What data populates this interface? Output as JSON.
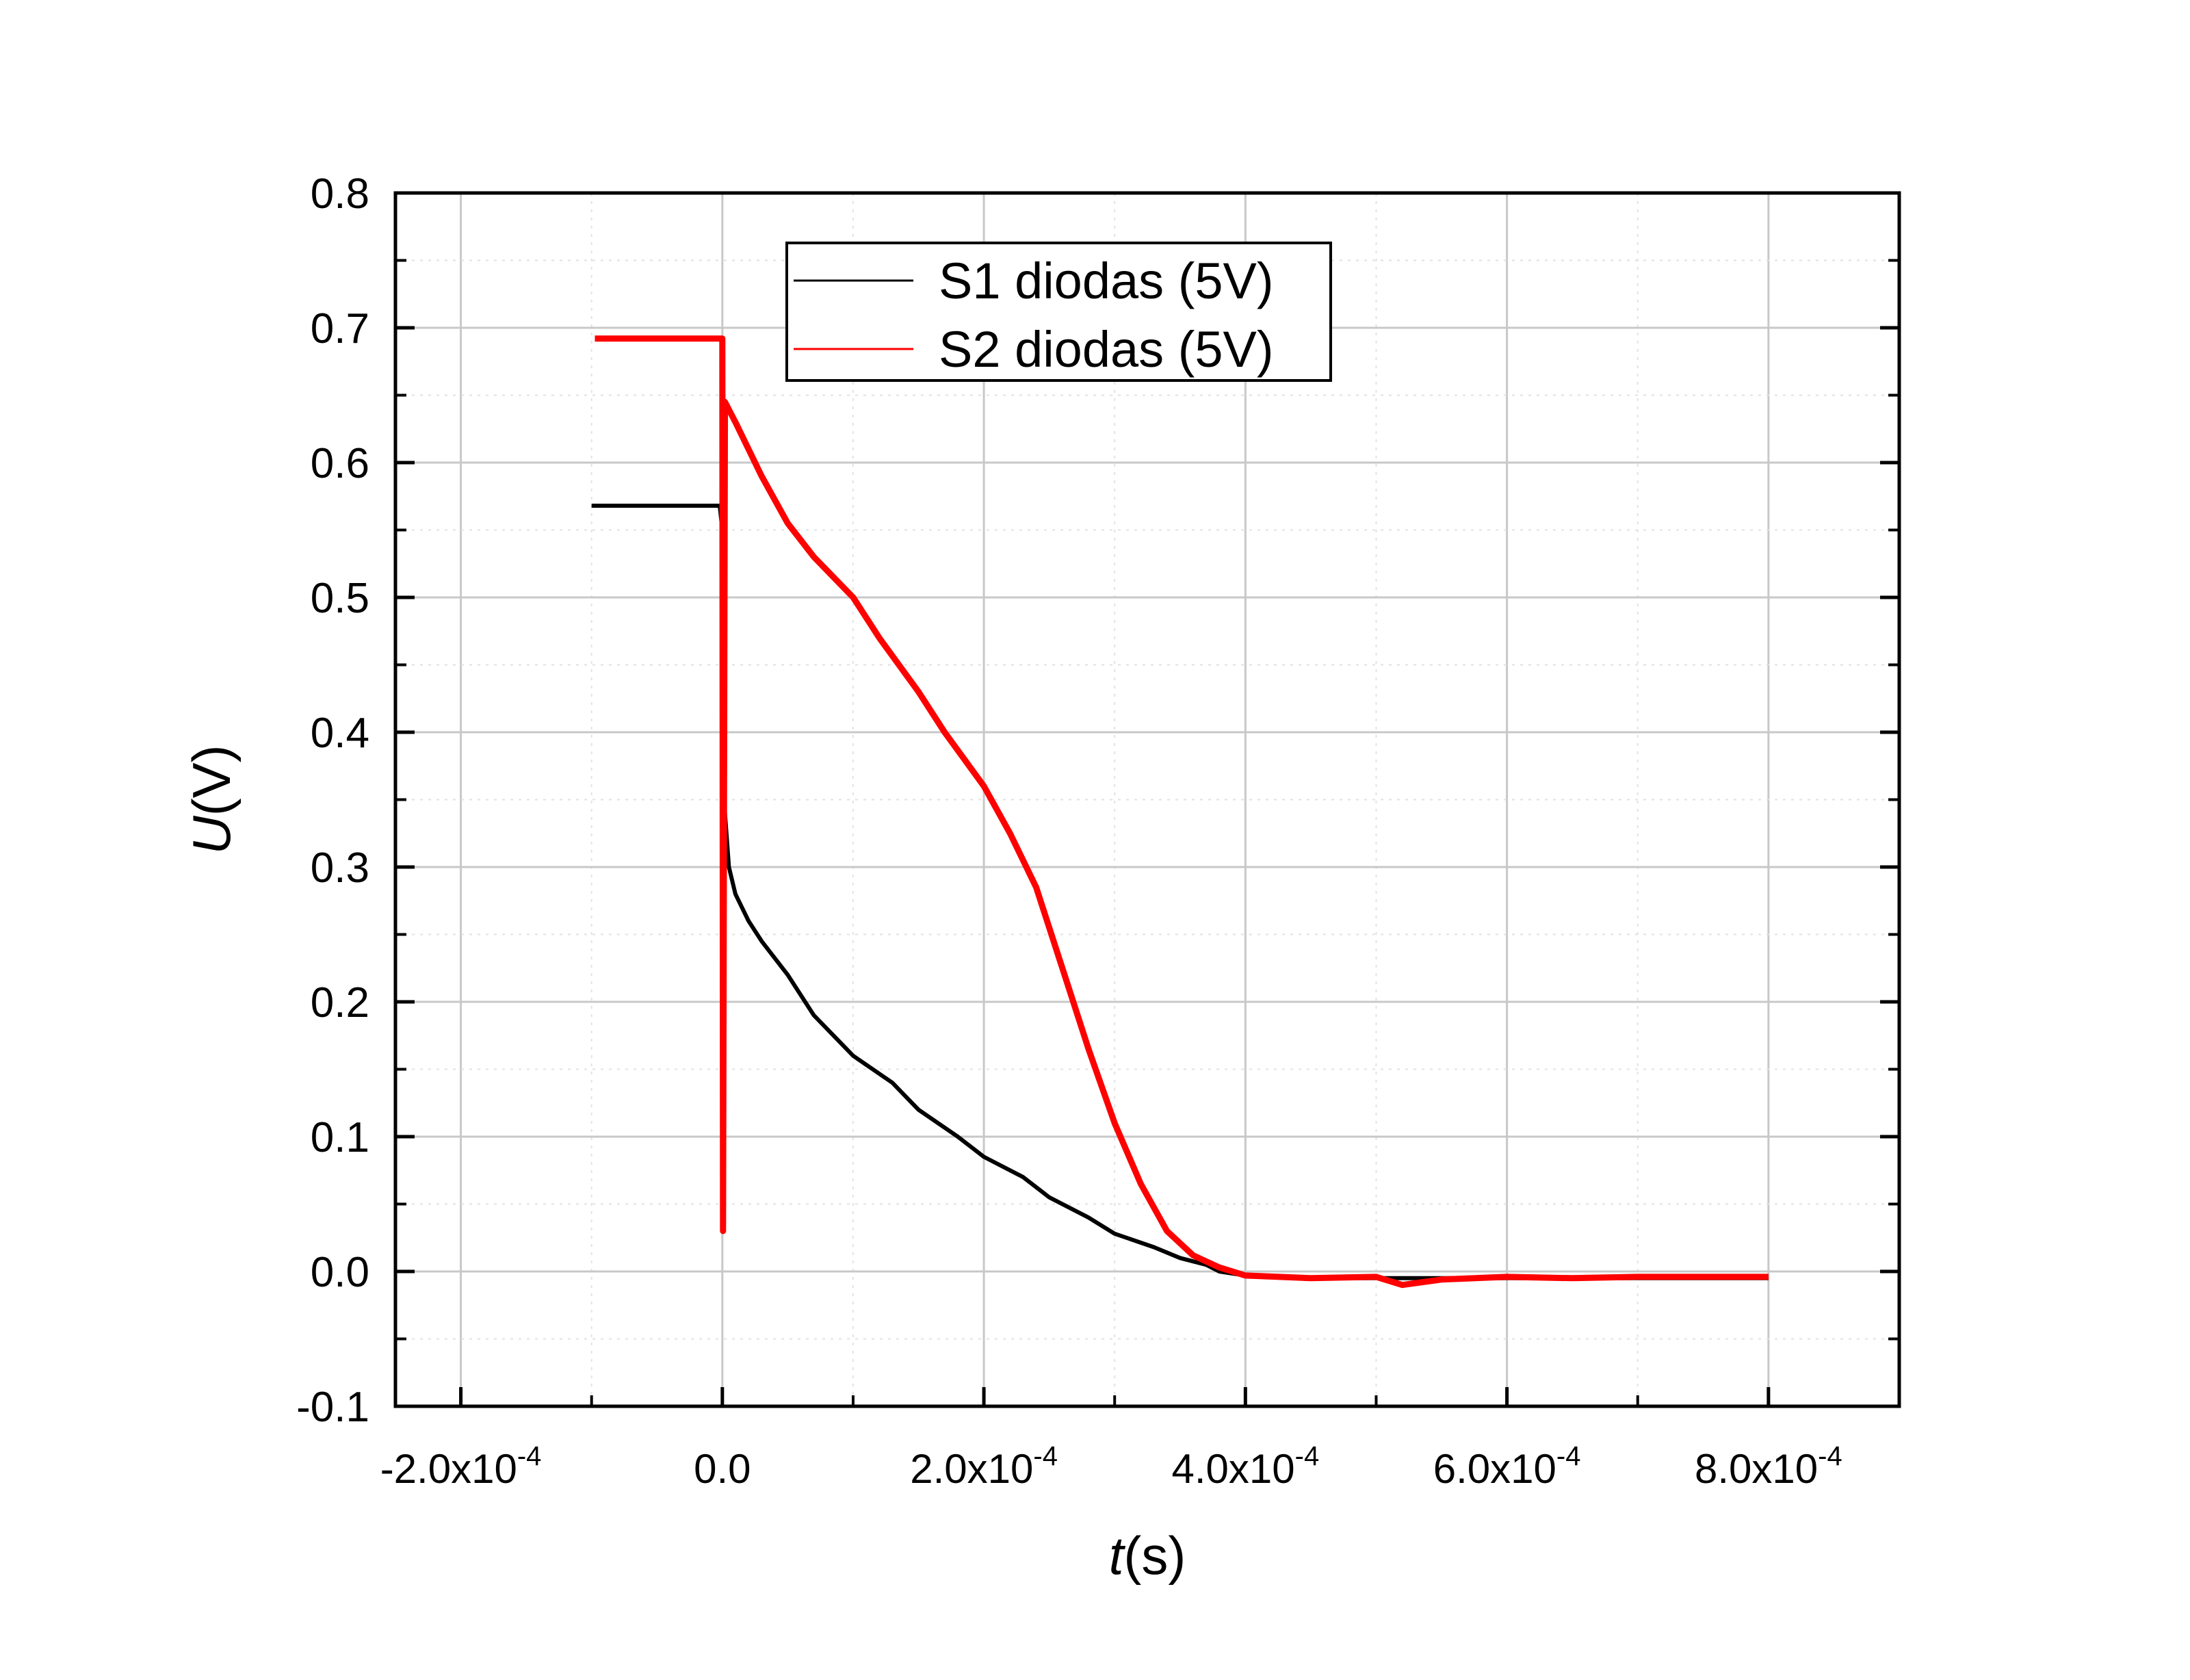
{
  "chart_data": {
    "type": "line",
    "xlabel": {
      "italic": "t",
      "rest": "(s)"
    },
    "ylabel": {
      "italic": "U",
      "rest": "(V)"
    },
    "xlim": [
      -0.00025,
      0.0009
    ],
    "ylim": [
      -0.1,
      0.8
    ],
    "grid": true,
    "legend_position": "top-center",
    "x_ticks": [
      {
        "value": -0.0002,
        "mantissa": "-2.0x10",
        "exponent": "-4"
      },
      {
        "value": 0.0,
        "mantissa": "0.0",
        "exponent": ""
      },
      {
        "value": 0.0002,
        "mantissa": "2.0x10",
        "exponent": "-4"
      },
      {
        "value": 0.0004,
        "mantissa": "4.0x10",
        "exponent": "-4"
      },
      {
        "value": 0.0006,
        "mantissa": "6.0x10",
        "exponent": "-4"
      },
      {
        "value": 0.0008,
        "mantissa": "8.0x10",
        "exponent": "-4"
      }
    ],
    "y_ticks": [
      {
        "value": -0.1,
        "label": "-0.1"
      },
      {
        "value": 0.0,
        "label": "0.0"
      },
      {
        "value": 0.1,
        "label": "0.1"
      },
      {
        "value": 0.2,
        "label": "0.2"
      },
      {
        "value": 0.3,
        "label": "0.3"
      },
      {
        "value": 0.4,
        "label": "0.4"
      },
      {
        "value": 0.5,
        "label": "0.5"
      },
      {
        "value": 0.6,
        "label": "0.6"
      },
      {
        "value": 0.7,
        "label": "0.7"
      },
      {
        "value": 0.8,
        "label": "0.8"
      }
    ],
    "series": [
      {
        "name": "S1 diodas (5V)",
        "color": "#000000",
        "x": [
          -0.0001,
          -5e-05,
          -2e-06,
          0.0,
          5e-07,
          2e-06,
          5e-06,
          1e-05,
          2e-05,
          3e-05,
          5e-05,
          7e-05,
          0.0001,
          0.00013,
          0.00015,
          0.00018,
          0.0002,
          0.00023,
          0.00025,
          0.00028,
          0.0003,
          0.00033,
          0.00035,
          0.00037,
          0.00038,
          0.0004,
          0.00045,
          0.0005,
          0.00055,
          0.0006,
          0.00065,
          0.0007,
          0.00075,
          0.0008
        ],
        "y": [
          0.568,
          0.568,
          0.568,
          0.55,
          0.36,
          0.34,
          0.3,
          0.28,
          0.26,
          0.245,
          0.22,
          0.19,
          0.16,
          0.14,
          0.12,
          0.1,
          0.085,
          0.07,
          0.055,
          0.04,
          0.028,
          0.018,
          0.01,
          0.005,
          0.0,
          -0.003,
          -0.005,
          -0.005,
          -0.005,
          -0.005,
          -0.005,
          -0.005,
          -0.005,
          -0.005
        ]
      },
      {
        "name": "S2 diodas (5V)",
        "color": "#ff0000",
        "x": [
          -9.75e-05,
          -5e-05,
          -2e-06,
          0.0,
          5e-07,
          2e-06,
          1e-05,
          3e-05,
          5e-05,
          7e-05,
          0.0001,
          0.00012,
          0.00015,
          0.00017,
          0.0002,
          0.00022,
          0.00024,
          0.00026,
          0.00028,
          0.0003,
          0.00032,
          0.00034,
          0.00036,
          0.00038,
          0.0004,
          0.00045,
          0.0005,
          0.00052,
          0.00055,
          0.0006,
          0.00065,
          0.0007,
          0.00075,
          0.0008
        ],
        "y": [
          0.692,
          0.692,
          0.692,
          0.692,
          0.03,
          0.645,
          0.63,
          0.59,
          0.555,
          0.53,
          0.5,
          0.47,
          0.43,
          0.4,
          0.36,
          0.325,
          0.285,
          0.225,
          0.165,
          0.11,
          0.065,
          0.03,
          0.012,
          0.003,
          -0.003,
          -0.005,
          -0.004,
          -0.01,
          -0.006,
          -0.004,
          -0.005,
          -0.004,
          -0.004,
          -0.004
        ]
      }
    ]
  }
}
